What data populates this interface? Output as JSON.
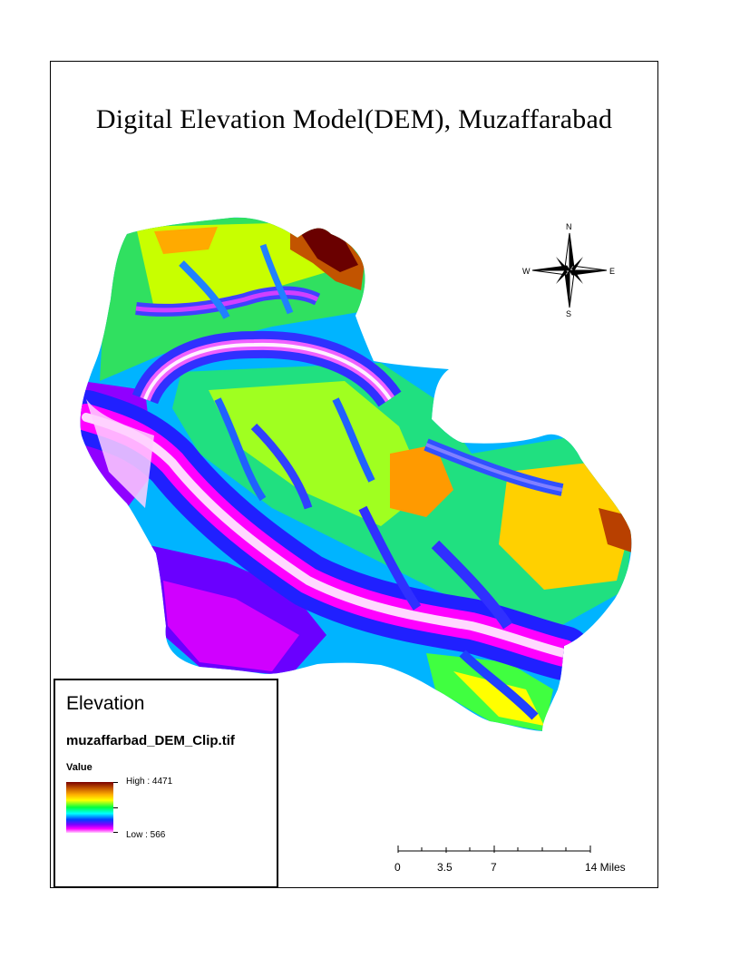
{
  "map": {
    "title": "Digital Elevation Model(DEM), Muzaffarabad"
  },
  "north_arrow": {
    "n": "N",
    "s": "S",
    "e": "E",
    "w": "W"
  },
  "legend": {
    "title": "Elevation",
    "layer_name": "muzaffarbad_DEM_Clip.tif",
    "field_label": "Value",
    "high_label": "High : 4471",
    "low_label": "Low : 566",
    "high_value": 4471,
    "low_value": 566,
    "color_ramp": [
      "#7a0000",
      "#c25400",
      "#ffb000",
      "#ffff00",
      "#00ff40",
      "#00ffff",
      "#0040ff",
      "#8000ff",
      "#ff00ff",
      "#ffd0ff"
    ]
  },
  "scale_bar": {
    "labels": [
      "0",
      "3.5",
      "7",
      "14 Miles"
    ],
    "unit": "Miles"
  }
}
